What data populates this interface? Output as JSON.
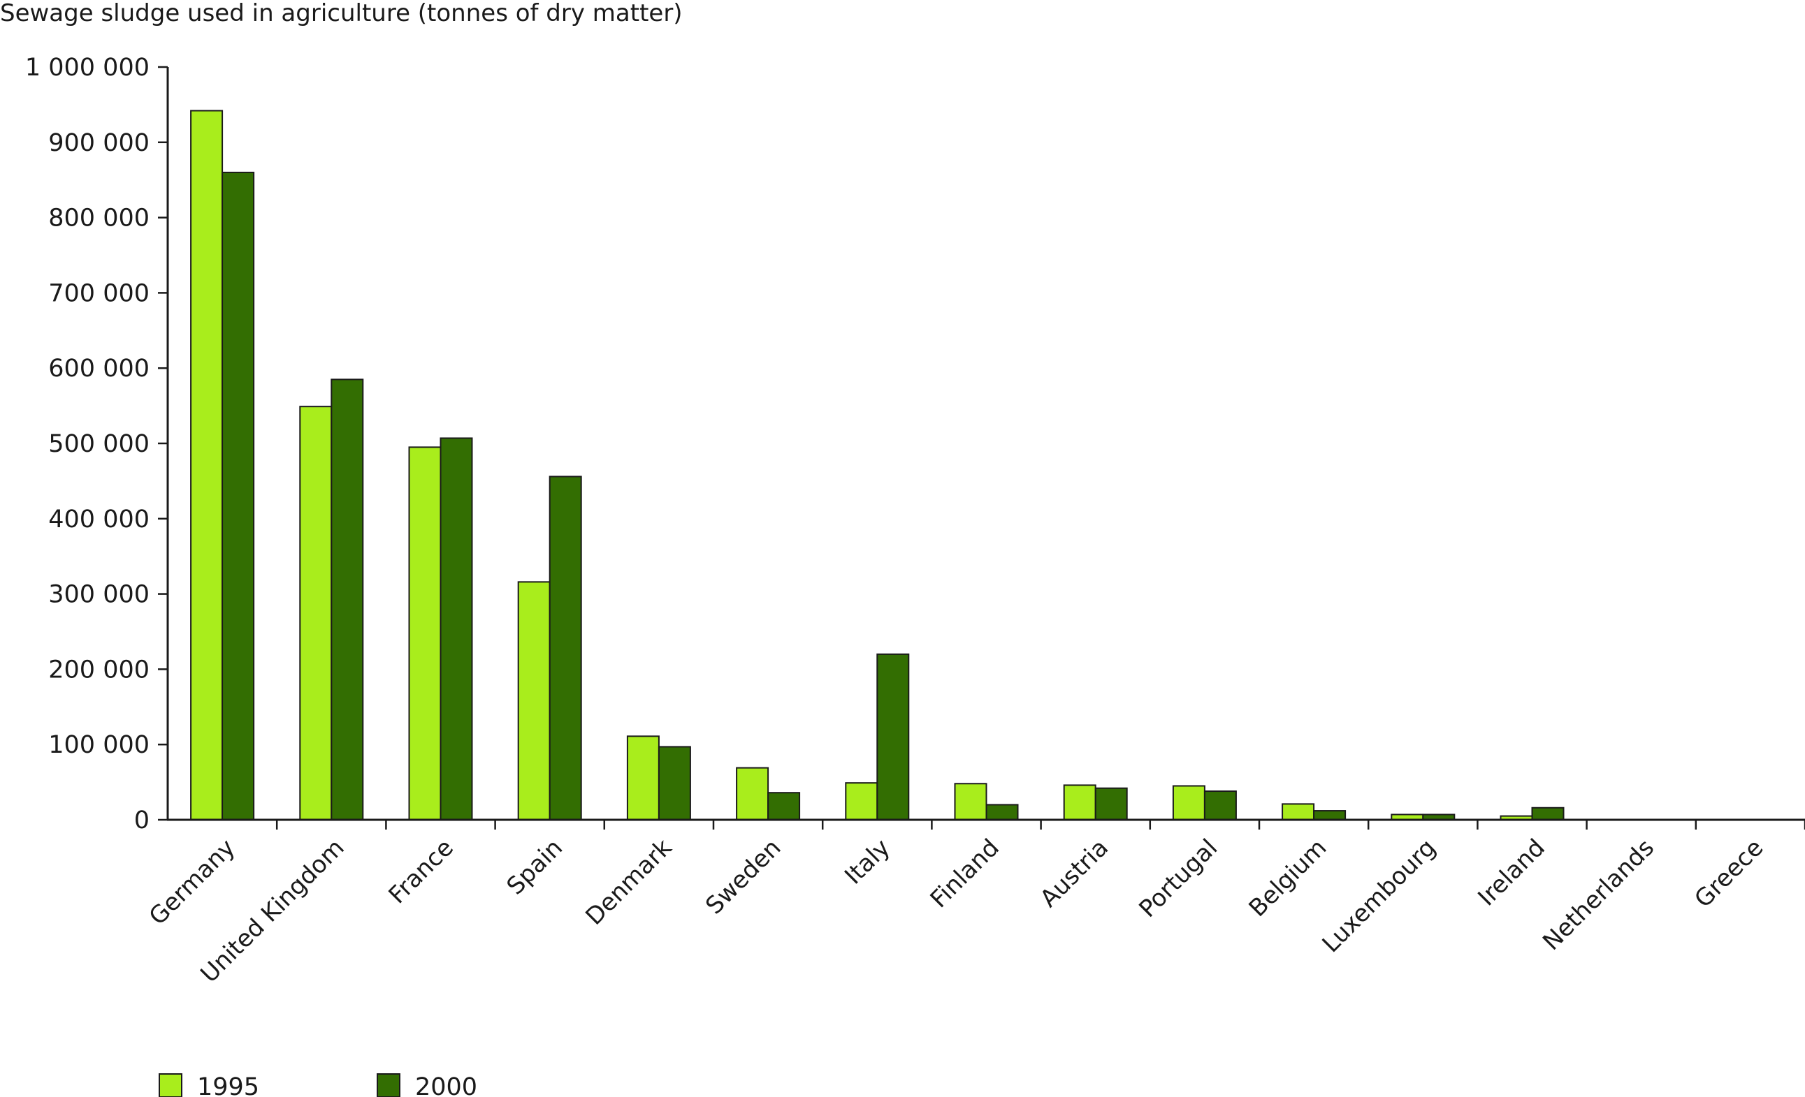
{
  "chart_data": {
    "type": "bar",
    "title": "",
    "ylabel": "Sewage sludge used in agriculture (tonnes of dry matter)",
    "xlabel": "",
    "ylim": [
      0,
      1000000
    ],
    "yticks": [
      0,
      100000,
      200000,
      300000,
      400000,
      500000,
      600000,
      700000,
      800000,
      900000,
      1000000
    ],
    "ytick_labels": [
      "0",
      "100 000",
      "200 000",
      "300 000",
      "400 000",
      "500 000",
      "600 000",
      "700 000",
      "800 000",
      "900 000",
      "1 000 000"
    ],
    "categories": [
      "Germany",
      "United Kingdom",
      "France",
      "Spain",
      "Denmark",
      "Sweden",
      "Italy",
      "Finland",
      "Austria",
      "Portugal",
      "Belgium",
      "Luxembourg",
      "Ireland",
      "Netherlands",
      "Greece"
    ],
    "series": [
      {
        "name": "1995",
        "color": "#a9ed1c",
        "values": [
          942000,
          549000,
          495000,
          316000,
          111000,
          69000,
          49000,
          48000,
          46000,
          45000,
          21000,
          7000,
          5000,
          0,
          0
        ]
      },
      {
        "name": "2000",
        "color": "#336e02",
        "values": [
          860000,
          585000,
          507000,
          456000,
          97000,
          36000,
          220000,
          20000,
          42000,
          38000,
          12000,
          7000,
          16000,
          0,
          0
        ]
      }
    ],
    "grid": false,
    "legend_position": "bottom-left"
  }
}
